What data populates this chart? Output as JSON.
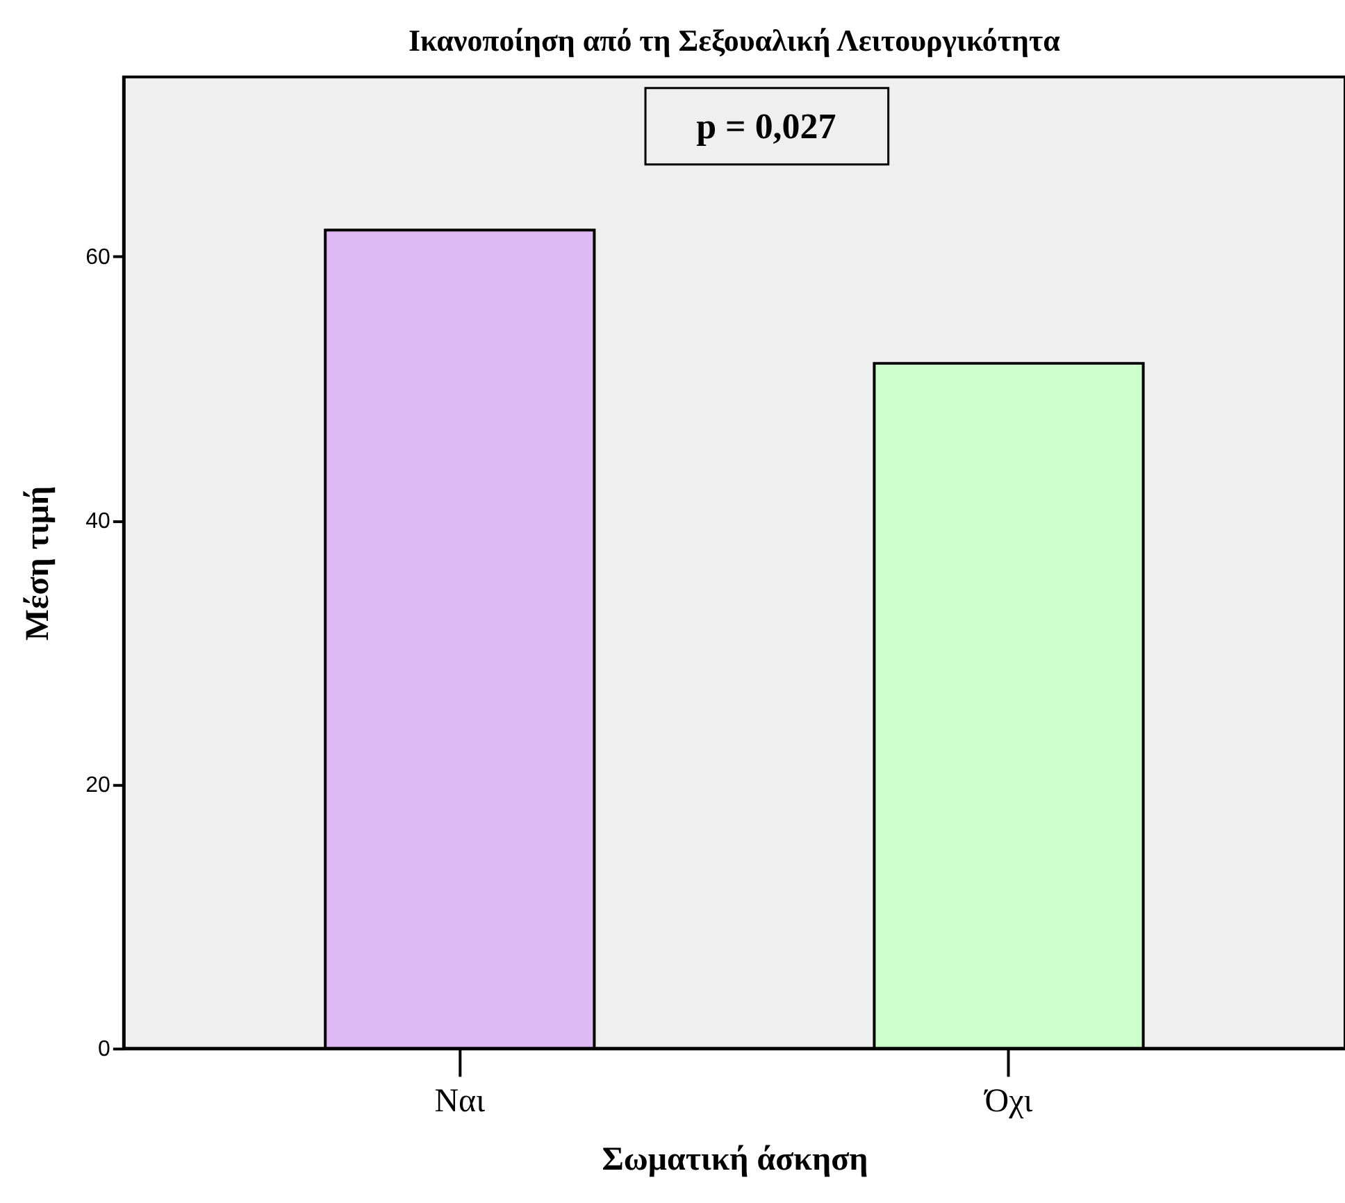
{
  "chart_data": {
    "type": "bar",
    "title": "Ικανοποίηση από τη Σεξουαλική Λειτουργικότητα",
    "xlabel": "Σωματική άσκηση",
    "ylabel": "Μέση τιμή",
    "categories": [
      "Ναι",
      "Όχι"
    ],
    "values": [
      62.0,
      51.9
    ],
    "colors": [
      "#dfb9f3",
      "#ccffcc"
    ],
    "ylim": [
      0,
      73.6
    ],
    "yticks": [
      0,
      20,
      40,
      60
    ],
    "annotations": [
      "p = 0,027"
    ],
    "grid": false
  }
}
